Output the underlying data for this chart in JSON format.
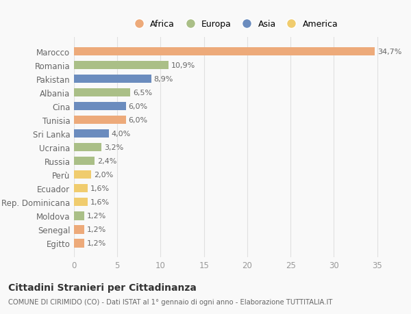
{
  "countries": [
    "Marocco",
    "Romania",
    "Pakistan",
    "Albania",
    "Cina",
    "Tunisia",
    "Sri Lanka",
    "Ucraina",
    "Russia",
    "Perù",
    "Ecuador",
    "Rep. Dominicana",
    "Moldova",
    "Senegal",
    "Egitto"
  ],
  "values": [
    34.7,
    10.9,
    8.9,
    6.5,
    6.0,
    6.0,
    4.0,
    3.2,
    2.4,
    2.0,
    1.6,
    1.6,
    1.2,
    1.2,
    1.2
  ],
  "labels": [
    "34,7%",
    "10,9%",
    "8,9%",
    "6,5%",
    "6,0%",
    "6,0%",
    "4,0%",
    "3,2%",
    "2,4%",
    "2,0%",
    "1,6%",
    "1,6%",
    "1,2%",
    "1,2%",
    "1,2%"
  ],
  "continents": [
    "Africa",
    "Europa",
    "Asia",
    "Europa",
    "Asia",
    "Africa",
    "Asia",
    "Europa",
    "Europa",
    "America",
    "America",
    "America",
    "Europa",
    "Africa",
    "Africa"
  ],
  "colors": {
    "Africa": "#EDAA7A",
    "Europa": "#AABF87",
    "Asia": "#6B8CBE",
    "America": "#F0CC6E"
  },
  "legend_order": [
    "Africa",
    "Europa",
    "Asia",
    "America"
  ],
  "title": "Cittadini Stranieri per Cittadinanza",
  "subtitle": "COMUNE DI CIRIMIDO (CO) - Dati ISTAT al 1° gennaio di ogni anno - Elaborazione TUTTITALIA.IT",
  "xlim": [
    0,
    37
  ],
  "xticks": [
    0,
    5,
    10,
    15,
    20,
    25,
    30,
    35
  ],
  "background_color": "#f9f9f9",
  "grid_color": "#e0e0e0"
}
